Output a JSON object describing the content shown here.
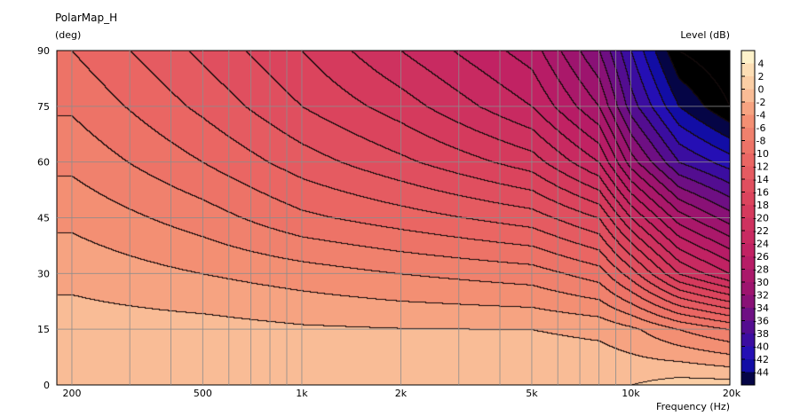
{
  "chart_data": {
    "type": "heatmap",
    "title": "PolarMap_H",
    "ylabel": "(deg)",
    "xlabel": "Frequency  (Hz)",
    "colorbar_label": "Level  (dB)",
    "x_scale": "log",
    "xlim": [
      180,
      20000
    ],
    "ylim": [
      0,
      90
    ],
    "x_ticks": [
      {
        "value": 200,
        "label": "200"
      },
      {
        "value": 500,
        "label": "500"
      },
      {
        "value": 1000,
        "label": "1k"
      },
      {
        "value": 2000,
        "label": "2k"
      },
      {
        "value": 5000,
        "label": "5k"
      },
      {
        "value": 10000,
        "label": "10k"
      },
      {
        "value": 20000,
        "label": "20k"
      }
    ],
    "y_ticks": [
      0,
      15,
      30,
      45,
      60,
      75,
      90
    ],
    "grid": true,
    "contour_step_db": 2,
    "colorbar_levels": [
      4,
      2,
      0,
      -2,
      -4,
      -6,
      -8,
      -10,
      -12,
      -14,
      -16,
      -18,
      -20,
      -22,
      -24,
      -26,
      -28,
      -30,
      -32,
      -34,
      -36,
      -38,
      -40,
      -42,
      -44
    ],
    "colorbar_range": [
      -46,
      6
    ],
    "level_samples": {
      "angles_deg": [
        0,
        15,
        30,
        45,
        60,
        75,
        90
      ],
      "rows": [
        {
          "freq": 200,
          "levels": [
            0,
            -1,
            -2.6,
            -4.5,
            -6.5,
            -8.3,
            -10
          ]
        },
        {
          "freq": 500,
          "levels": [
            0,
            -1.2,
            -4,
            -7,
            -10,
            -12.5,
            -14.5
          ]
        },
        {
          "freq": 1000,
          "levels": [
            0,
            -1.7,
            -5,
            -9.5,
            -13,
            -16,
            -18
          ]
        },
        {
          "freq": 2000,
          "levels": [
            0,
            -1.9,
            -6,
            -11,
            -15.5,
            -19,
            -22
          ]
        },
        {
          "freq": 5000,
          "levels": [
            0,
            -2,
            -7,
            -13,
            -19,
            -24,
            -27
          ]
        },
        {
          "freq": 8000,
          "levels": [
            0,
            -2.5,
            -9,
            -16,
            -24,
            -30,
            -34
          ]
        },
        {
          "freq": 10000,
          "levels": [
            0,
            -3.5,
            -13,
            -22,
            -31,
            -37,
            -40
          ]
        },
        {
          "freq": 14000,
          "levels": [
            1,
            -6,
            -20,
            -29,
            -38,
            -44,
            -48
          ]
        },
        {
          "freq": 20000,
          "levels": [
            1,
            -8,
            -24,
            -33,
            -41,
            -48,
            -50
          ]
        }
      ]
    }
  }
}
